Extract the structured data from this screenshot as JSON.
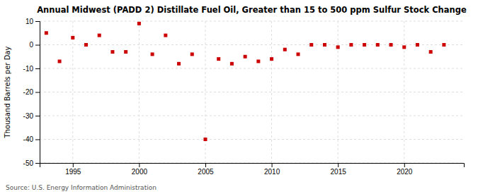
{
  "chart_data": {
    "type": "scatter",
    "title": "Annual Midwest (PADD 2) Distillate Fuel Oil, Greater than 15 to 500 ppm Sulfur Stock Change",
    "y_label": "Thousand Barrels per Day",
    "annotations": [
      "Source: U.S. Energy Information Administration"
    ],
    "x": [
      1993,
      1994,
      1995,
      1996,
      1997,
      1998,
      1999,
      2000,
      2001,
      2002,
      2003,
      2004,
      2005,
      2006,
      2007,
      2008,
      2009,
      2010,
      2011,
      2012,
      2013,
      2014,
      2015,
      2016,
      2017,
      2018,
      2019,
      2020,
      2021,
      2022,
      2023
    ],
    "values": [
      5.0,
      -7.0,
      3.0,
      0.0,
      4.0,
      -3.0,
      -3.0,
      9.0,
      -4.0,
      4.0,
      -8.0,
      -4.0,
      -40.0,
      -6.0,
      -8.0,
      -5.0,
      -7.0,
      -6.0,
      -2.0,
      -4.0,
      0.0,
      0.0,
      -1.0,
      0.0,
      0.0,
      0.0,
      0.0,
      -1.0,
      0.0,
      -3.0,
      0.0
    ],
    "color": "#cc0000",
    "marker": "square",
    "xlim": [
      1992.5,
      2024.5
    ],
    "ylim": [
      -50,
      10
    ],
    "xticks": [
      1995,
      2000,
      2005,
      2010,
      2015,
      2020
    ],
    "yticks": [
      -50,
      -40,
      -30,
      -20,
      -10,
      0,
      10
    ],
    "grid": true
  }
}
